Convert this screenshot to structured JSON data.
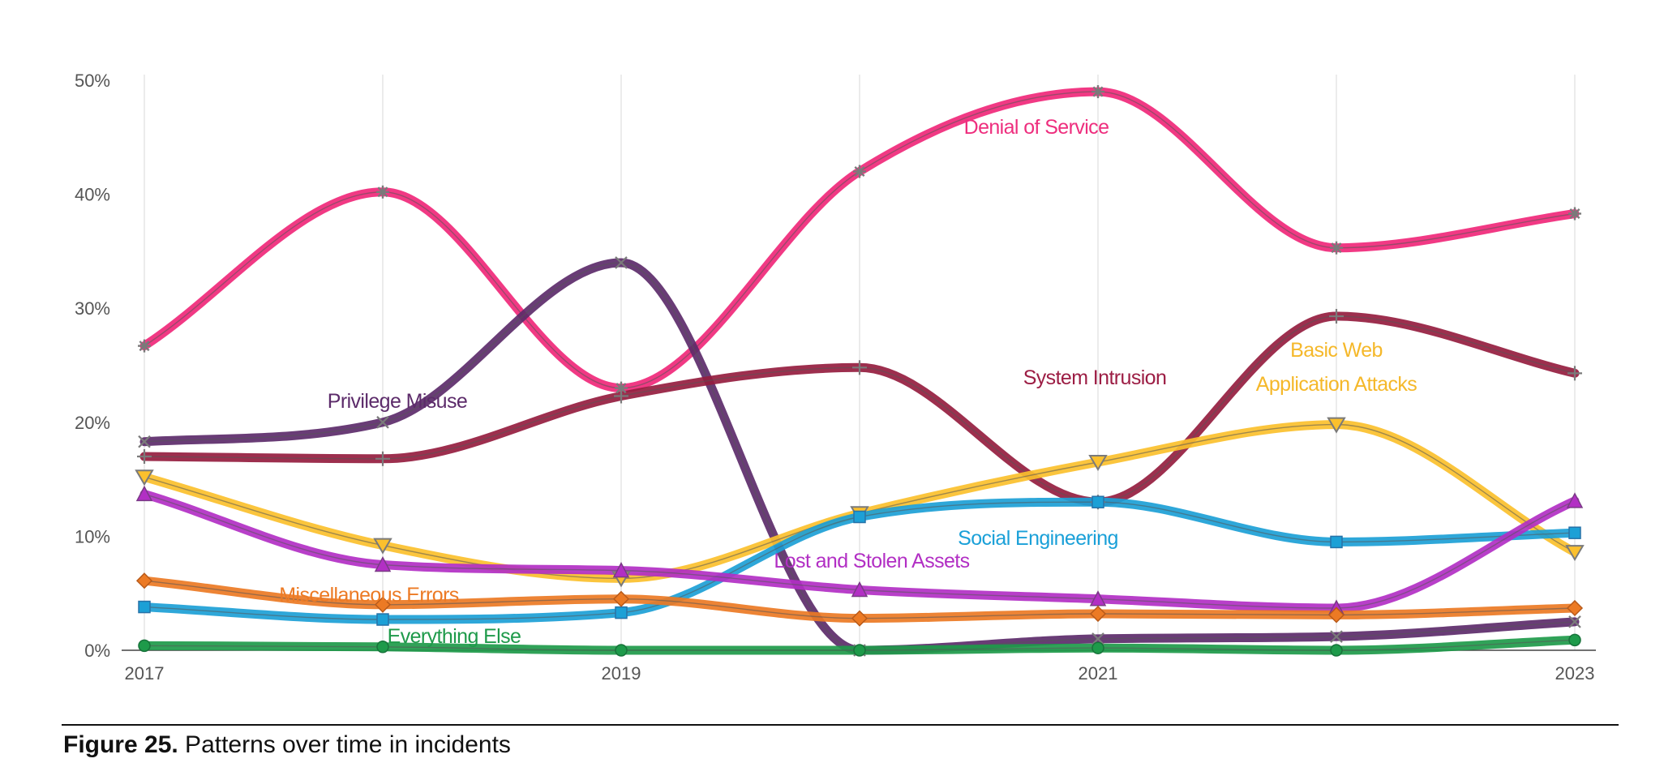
{
  "chart_data": {
    "type": "line",
    "title": "",
    "xlabel": "",
    "ylabel": "",
    "x": [
      2017,
      2018,
      2019,
      2020,
      2021,
      2022,
      2023
    ],
    "x_tick_labels": [
      "2017",
      "2019",
      "2021",
      "2023"
    ],
    "y_tick_labels": [
      "0%",
      "10%",
      "20%",
      "30%",
      "40%",
      "50%"
    ],
    "ylim": [
      0,
      50
    ],
    "grid": "vertical",
    "legend": "inline labels",
    "series": [
      {
        "name": "Denial of Service",
        "color": "#f0287a",
        "marker": "asterisk",
        "values": [
          26.7,
          40.2,
          23.0,
          42.0,
          49.0,
          35.3,
          38.3
        ]
      },
      {
        "name": "Privilege Misuse",
        "color": "#5c2b6a",
        "marker": "x",
        "values": [
          18.3,
          20.0,
          34.0,
          0.0,
          1.0,
          1.2,
          2.5
        ]
      },
      {
        "name": "System Intrusion",
        "color": "#951d3f",
        "marker": "plus",
        "values": [
          17.0,
          16.8,
          22.3,
          24.8,
          13.0,
          29.3,
          24.3
        ]
      },
      {
        "name": "Basic Web Application Attacks",
        "label_lines": [
          "Basic Web",
          "Application Attacks"
        ],
        "color": "#fbc02d",
        "marker": "triangle-down",
        "values": [
          15.2,
          9.2,
          6.3,
          12.0,
          16.5,
          19.8,
          8.6
        ]
      },
      {
        "name": "Social Engineering",
        "color": "#1ca0d6",
        "marker": "square",
        "values": [
          3.8,
          2.7,
          3.3,
          11.7,
          13.0,
          9.5,
          10.3
        ]
      },
      {
        "name": "Lost and Stolen Assets",
        "color": "#b22fc4",
        "marker": "triangle-up",
        "values": [
          13.7,
          7.5,
          7.0,
          5.3,
          4.5,
          3.7,
          13.1
        ]
      },
      {
        "name": "Miscellaneous Errors",
        "color": "#ec7a24",
        "marker": "diamond",
        "values": [
          6.1,
          4.0,
          4.5,
          2.8,
          3.2,
          3.1,
          3.7
        ]
      },
      {
        "name": "Everything Else",
        "color": "#1e9a4a",
        "marker": "circle",
        "values": [
          0.4,
          0.3,
          0.0,
          0.0,
          0.2,
          0.0,
          0.9
        ]
      }
    ]
  },
  "caption": {
    "label": "Figure 25.",
    "text": " Patterns over time in incidents"
  }
}
